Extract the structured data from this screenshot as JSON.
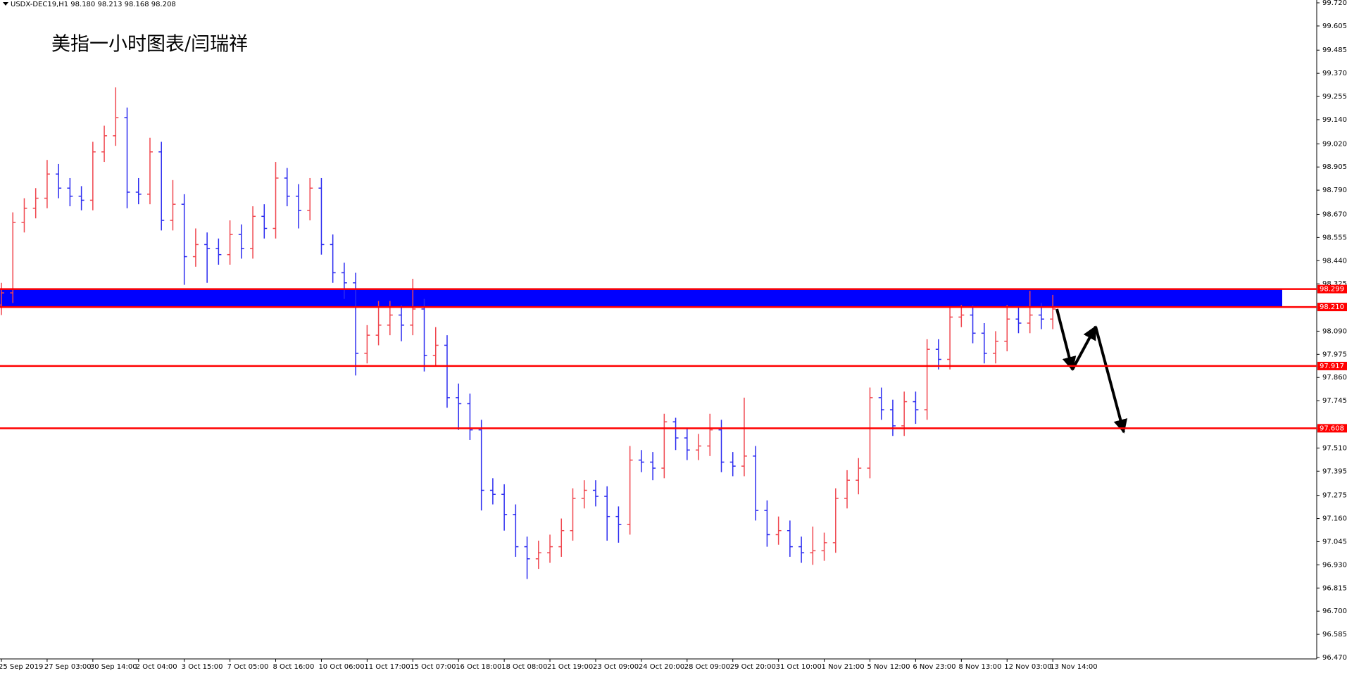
{
  "chart_data": {
    "type": "ohlc",
    "header": "USDX-DEC19,H1  98.180 98.213 98.168 98.208",
    "title": "美指一小时图表/闫瑞祥",
    "up_color": "#f0464e",
    "down_color": "#2b2bf0",
    "level_color": "#ff0000",
    "zone_color": "#0000ff",
    "levels": [
      98.299,
      {
        "value": 98.21,
        "label": "98.210"
      },
      97.917,
      97.608
    ],
    "ylim": [
      96.47,
      99.72
    ],
    "yticks": [
      {
        "value": 99.72,
        "label": "99.720"
      },
      99.605,
      99.485,
      {
        "value": 99.37,
        "label": "99.370"
      },
      99.255,
      {
        "value": 99.14,
        "label": "99.140"
      },
      {
        "value": 99.02,
        "label": "99.020"
      },
      98.905,
      {
        "value": 98.79,
        "label": "98.790"
      },
      {
        "value": 98.67,
        "label": "98.670"
      },
      98.555,
      {
        "value": 98.44,
        "label": "98.440"
      },
      98.325,
      {
        "value": 98.09,
        "label": "98.090"
      },
      97.975,
      {
        "value": 97.86,
        "label": "97.860"
      },
      97.745,
      {
        "value": 97.51,
        "label": "97.510"
      },
      97.395,
      97.275,
      {
        "value": 97.16,
        "label": "97.160"
      },
      97.045,
      {
        "value": 96.93,
        "label": "96.930"
      },
      96.815,
      {
        "value": 96.7,
        "label": "96.700"
      },
      96.585,
      {
        "value": 96.47,
        "label": "96.470"
      }
    ],
    "categories": [
      "25 Sep 2019",
      null,
      null,
      null,
      "27 Sep 03:00",
      null,
      null,
      null,
      "30 Sep 14:00",
      null,
      null,
      null,
      "2 Oct 04:00",
      null,
      null,
      null,
      "3 Oct 15:00",
      null,
      null,
      null,
      "7 Oct 05:00",
      null,
      null,
      null,
      "8 Oct 16:00",
      null,
      null,
      null,
      "10 Oct 06:00",
      null,
      null,
      null,
      "11 Oct 17:00",
      null,
      null,
      null,
      "15 Oct 07:00",
      null,
      null,
      null,
      "16 Oct 18:00",
      null,
      null,
      null,
      "18 Oct 08:00",
      null,
      null,
      null,
      "21 Oct 19:00",
      null,
      null,
      null,
      "23 Oct 09:00",
      null,
      null,
      null,
      "24 Oct 20:00",
      null,
      null,
      null,
      "28 Oct 09:00",
      null,
      null,
      null,
      "29 Oct 20:00",
      null,
      null,
      null,
      "31 Oct 10:00",
      null,
      null,
      null,
      "1 Nov 21:00",
      null,
      null,
      null,
      "5 Nov 12:00",
      null,
      null,
      null,
      "6 Nov 23:00",
      null,
      null,
      null,
      "8 Nov 13:00",
      null,
      null,
      null,
      "12 Nov 03:00",
      null,
      null,
      null,
      "13 Nov 14:00"
    ],
    "open": [
      98.22,
      98.28,
      98.63,
      98.7,
      98.75,
      98.87,
      98.8,
      98.76,
      98.74,
      98.98,
      99.06,
      99.15,
      98.78,
      98.77,
      98.98,
      98.64,
      98.72,
      98.46,
      98.52,
      98.5,
      98.47,
      98.57,
      98.5,
      98.66,
      98.6,
      98.85,
      98.76,
      98.69,
      98.8,
      98.52,
      98.38,
      98.33,
      97.98,
      98.07,
      98.12,
      98.17,
      98.12,
      98.2,
      97.97,
      98.02,
      97.76,
      97.73,
      97.6,
      97.3,
      97.28,
      97.18,
      97.02,
      96.96,
      96.99,
      97.02,
      97.1,
      97.26,
      97.3,
      97.27,
      97.17,
      97.13,
      97.45,
      97.44,
      97.41,
      97.64,
      97.56,
      97.5,
      97.52,
      97.6,
      97.44,
      97.42,
      97.47,
      97.2,
      97.08,
      97.1,
      97.02,
      96.99,
      97.0,
      97.04,
      97.26,
      97.35,
      97.41,
      97.76,
      97.7,
      97.62,
      97.74,
      97.7,
      98.0,
      97.95,
      98.16,
      98.17,
      98.08,
      97.98,
      98.04,
      98.15,
      98.13,
      98.17,
      98.15
    ],
    "high": [
      98.33,
      98.68,
      98.75,
      98.8,
      98.94,
      98.92,
      98.85,
      98.81,
      99.03,
      99.11,
      99.3,
      99.2,
      98.85,
      99.05,
      99.03,
      98.84,
      98.77,
      98.6,
      98.58,
      98.55,
      98.64,
      98.62,
      98.71,
      98.72,
      98.93,
      98.9,
      98.82,
      98.85,
      98.85,
      98.57,
      98.43,
      98.38,
      98.12,
      98.24,
      98.24,
      98.22,
      98.35,
      98.25,
      98.11,
      98.07,
      97.83,
      97.78,
      97.65,
      97.36,
      97.33,
      97.23,
      97.07,
      97.05,
      97.08,
      97.16,
      97.31,
      97.35,
      97.35,
      97.32,
      97.22,
      97.52,
      97.5,
      97.49,
      97.68,
      97.66,
      97.61,
      97.58,
      97.68,
      97.65,
      97.49,
      97.76,
      97.52,
      97.25,
      97.17,
      97.15,
      97.07,
      97.12,
      97.09,
      97.31,
      97.4,
      97.46,
      97.81,
      97.81,
      97.75,
      97.79,
      97.79,
      98.05,
      98.05,
      98.21,
      98.22,
      98.22,
      98.13,
      98.09,
      98.22,
      98.21,
      98.29,
      98.23,
      98.27
    ],
    "low": [
      98.17,
      98.23,
      98.58,
      98.65,
      98.7,
      98.75,
      98.71,
      98.69,
      98.69,
      98.93,
      99.01,
      98.7,
      98.72,
      98.72,
      98.59,
      98.59,
      98.32,
      98.41,
      98.33,
      98.42,
      98.42,
      98.45,
      98.45,
      98.55,
      98.55,
      98.71,
      98.6,
      98.64,
      98.47,
      98.33,
      98.25,
      97.87,
      97.93,
      98.02,
      98.07,
      98.04,
      98.07,
      97.89,
      97.92,
      97.71,
      97.6,
      97.55,
      97.2,
      97.23,
      97.1,
      96.97,
      96.86,
      96.91,
      96.94,
      96.97,
      97.05,
      97.21,
      97.22,
      97.05,
      97.04,
      97.08,
      97.39,
      97.35,
      97.36,
      97.5,
      97.45,
      97.45,
      97.47,
      97.39,
      97.37,
      97.37,
      97.15,
      97.02,
      97.03,
      96.97,
      96.94,
      96.93,
      96.95,
      96.99,
      97.21,
      97.28,
      97.36,
      97.65,
      97.57,
      97.57,
      97.63,
      97.65,
      97.9,
      97.9,
      98.11,
      98.03,
      97.93,
      97.93,
      97.99,
      98.08,
      98.08,
      98.1,
      98.1
    ],
    "close": [
      98.28,
      98.63,
      98.7,
      98.75,
      98.87,
      98.8,
      98.76,
      98.74,
      98.98,
      99.06,
      99.15,
      98.78,
      98.77,
      98.98,
      98.64,
      98.72,
      98.46,
      98.52,
      98.5,
      98.47,
      98.57,
      98.5,
      98.66,
      98.6,
      98.85,
      98.76,
      98.69,
      98.8,
      98.52,
      98.38,
      98.33,
      97.98,
      98.07,
      98.12,
      98.17,
      98.12,
      98.2,
      97.97,
      98.02,
      97.76,
      97.73,
      97.6,
      97.3,
      97.28,
      97.18,
      97.02,
      96.96,
      96.99,
      97.02,
      97.1,
      97.26,
      97.3,
      97.27,
      97.17,
      97.13,
      97.45,
      97.44,
      97.41,
      97.64,
      97.56,
      97.5,
      97.52,
      97.6,
      97.44,
      97.42,
      97.47,
      97.2,
      97.08,
      97.1,
      97.02,
      96.99,
      97.0,
      97.04,
      97.26,
      97.35,
      97.41,
      97.76,
      97.7,
      97.62,
      97.74,
      97.7,
      98.0,
      97.95,
      98.16,
      98.17,
      98.08,
      97.98,
      98.04,
      98.15,
      98.13,
      98.17,
      98.15,
      98.2
    ]
  }
}
